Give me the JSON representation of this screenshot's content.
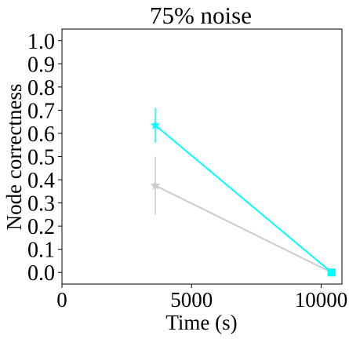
{
  "chart_data": {
    "type": "line",
    "title": "75% noise",
    "xlabel": "Time (s)",
    "ylabel": "Node correctness",
    "xlim": [
      0,
      10800
    ],
    "ylim": [
      -0.05,
      1.05
    ],
    "xticks": [
      0,
      5000,
      10000
    ],
    "xtick_labels": [
      "0",
      "5000",
      "10000"
    ],
    "yticks": [
      0.0,
      0.1,
      0.2,
      0.3,
      0.4,
      0.5,
      0.6,
      0.7,
      0.8,
      0.9,
      1.0
    ],
    "ytick_labels": [
      "0.0",
      "0.1",
      "0.2",
      "0.3",
      "0.4",
      "0.5",
      "0.6",
      "0.7",
      "0.8",
      "0.9",
      "1.0"
    ],
    "grid": false,
    "series": [
      {
        "color": "#00ffff",
        "x": [
          3600,
          10400
        ],
        "y": [
          0.635,
          0.0
        ],
        "yerr": [
          0.075,
          0.0
        ],
        "markers": [
          "star",
          "square"
        ]
      },
      {
        "color": "#cccccc",
        "x": [
          3600,
          10400
        ],
        "y": [
          0.375,
          0.0
        ],
        "yerr": [
          0.125,
          0.0
        ],
        "markers": [
          "star",
          "square"
        ]
      }
    ]
  }
}
